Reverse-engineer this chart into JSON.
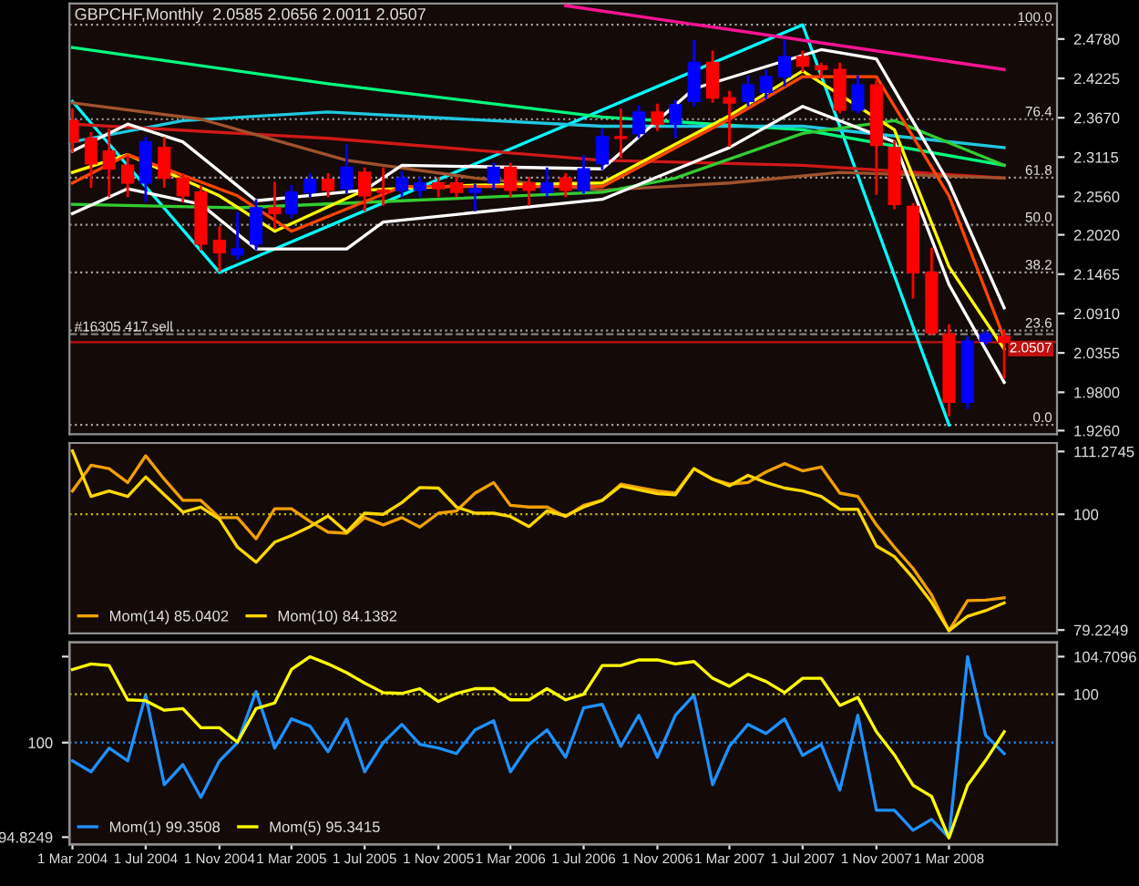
{
  "chart_data": [
    {
      "type": "candlestick",
      "title": "GBPCHF,Monthly  2.0585 2.0656 2.0011 2.0507",
      "x": [
        "2004-03",
        "2004-04",
        "2004-05",
        "2004-06",
        "2004-07",
        "2004-08",
        "2004-09",
        "2004-10",
        "2004-11",
        "2004-12",
        "2005-01",
        "2005-02",
        "2005-03",
        "2005-04",
        "2005-05",
        "2005-06",
        "2005-07",
        "2005-08",
        "2005-09",
        "2005-10",
        "2005-11",
        "2005-12",
        "2006-01",
        "2006-02",
        "2006-03",
        "2006-04",
        "2006-05",
        "2006-06",
        "2006-07",
        "2006-08",
        "2006-09",
        "2006-10",
        "2006-11",
        "2006-12",
        "2007-01",
        "2007-02",
        "2007-03",
        "2007-04",
        "2007-05",
        "2007-06",
        "2007-07",
        "2007-08",
        "2007-09",
        "2007-10",
        "2007-11",
        "2007-12",
        "2008-01",
        "2008-02",
        "2008-03",
        "2008-04",
        "2008-05",
        "2008-06"
      ],
      "ohlc": [
        [
          2.363,
          2.378,
          2.32,
          2.333
        ],
        [
          2.338,
          2.345,
          2.27,
          2.302
        ],
        [
          2.32,
          2.35,
          2.257,
          2.295
        ],
        [
          2.3,
          2.312,
          2.257,
          2.275
        ],
        [
          2.275,
          2.338,
          2.25,
          2.333
        ],
        [
          2.325,
          2.338,
          2.27,
          2.282
        ],
        [
          2.282,
          2.287,
          2.25,
          2.257
        ],
        [
          2.262,
          2.27,
          2.182,
          2.189
        ],
        [
          2.194,
          2.212,
          2.152,
          2.177
        ],
        [
          2.174,
          2.232,
          2.169,
          2.182
        ],
        [
          2.189,
          2.25,
          2.182,
          2.24
        ],
        [
          2.24,
          2.275,
          2.212,
          2.232
        ],
        [
          2.232,
          2.27,
          2.227,
          2.262
        ],
        [
          2.262,
          2.287,
          2.257,
          2.28
        ],
        [
          2.28,
          2.287,
          2.257,
          2.265
        ],
        [
          2.267,
          2.328,
          2.262,
          2.297
        ],
        [
          2.29,
          2.295,
          2.237,
          2.257
        ],
        [
          2.265,
          2.295,
          2.245,
          2.262
        ],
        [
          2.265,
          2.29,
          2.257,
          2.282
        ],
        [
          2.265,
          2.282,
          2.257,
          2.275
        ],
        [
          2.275,
          2.282,
          2.257,
          2.267
        ],
        [
          2.275,
          2.282,
          2.257,
          2.262
        ],
        [
          2.262,
          2.272,
          2.237,
          2.267
        ],
        [
          2.275,
          2.302,
          2.267,
          2.297
        ],
        [
          2.297,
          2.302,
          2.257,
          2.265
        ],
        [
          2.275,
          2.282,
          2.245,
          2.265
        ],
        [
          2.262,
          2.295,
          2.257,
          2.275
        ],
        [
          2.282,
          2.287,
          2.257,
          2.265
        ],
        [
          2.265,
          2.312,
          2.262,
          2.295
        ],
        [
          2.302,
          2.35,
          2.295,
          2.34
        ],
        [
          2.34,
          2.378,
          2.312,
          2.338
        ],
        [
          2.345,
          2.383,
          2.34,
          2.375
        ],
        [
          2.375,
          2.385,
          2.35,
          2.358
        ],
        [
          2.358,
          2.39,
          2.34,
          2.385
        ],
        [
          2.39,
          2.475,
          2.385,
          2.445
        ],
        [
          2.445,
          2.46,
          2.39,
          2.395
        ],
        [
          2.395,
          2.403,
          2.328,
          2.388
        ],
        [
          2.39,
          2.425,
          2.385,
          2.413
        ],
        [
          2.403,
          2.433,
          2.395,
          2.425
        ],
        [
          2.425,
          2.475,
          2.413,
          2.453
        ],
        [
          2.453,
          2.46,
          2.433,
          2.44
        ],
        [
          2.44,
          2.443,
          2.425,
          2.435
        ],
        [
          2.435,
          2.443,
          2.375,
          2.378
        ],
        [
          2.378,
          2.425,
          2.375,
          2.413
        ],
        [
          2.413,
          2.42,
          2.26,
          2.328
        ],
        [
          2.325,
          2.333,
          2.24,
          2.245
        ],
        [
          2.242,
          2.245,
          2.114,
          2.149
        ],
        [
          2.149,
          2.182,
          2.062,
          2.064
        ],
        [
          2.062,
          2.074,
          1.948,
          1.966
        ],
        [
          1.966,
          2.057,
          1.958,
          2.052
        ],
        [
          2.052,
          2.064,
          2.049,
          2.062
        ],
        [
          2.0585,
          2.0656,
          2.0011,
          2.0507
        ]
      ],
      "colors": [
        "#ff0000",
        "#ff0000",
        "#ff0000",
        "#ff0000",
        "#0000ff",
        "#ff0000",
        "#ff0000",
        "#ff0000",
        "#ff0000",
        "#0000ff",
        "#0000ff",
        "#ff0000",
        "#0000ff",
        "#0000ff",
        "#ff0000",
        "#0000ff",
        "#ff0000",
        "#ff0000",
        "#0000ff",
        "#0000ff",
        "#ff0000",
        "#ff0000",
        "#0000ff",
        "#0000ff",
        "#ff0000",
        "#ff0000",
        "#0000ff",
        "#ff0000",
        "#0000ff",
        "#0000ff",
        "#ff0000",
        "#0000ff",
        "#ff0000",
        "#0000ff",
        "#0000ff",
        "#ff0000",
        "#ff0000",
        "#0000ff",
        "#0000ff",
        "#0000ff",
        "#ff0000",
        "#ff0000",
        "#ff0000",
        "#0000ff",
        "#ff0000",
        "#ff0000",
        "#ff0000",
        "#ff0000",
        "#ff0000",
        "#0000ff",
        "#0000ff",
        "#ff0000"
      ],
      "series": [
        {
          "type": "line",
          "color": "#00ffff",
          "x": [
            "2004-03",
            "2004-11",
            "2007-07",
            "2008-03"
          ],
          "values": [
            2.39,
            2.149,
            2.498,
            1.934
          ]
        },
        {
          "type": "line",
          "color": "#ff1493",
          "x": [
            "2006-06",
            "2008-06"
          ],
          "values": [
            2.525,
            2.435
          ]
        },
        {
          "type": "line",
          "color": "#00ff7f",
          "x": [
            "2004-03",
            "2005-05",
            "2006-08",
            "2007-07",
            "2008-06"
          ],
          "values": [
            2.466,
            2.415,
            2.368,
            2.35,
            2.3
          ]
        },
        {
          "type": "line",
          "color": "#20c8e0",
          "x": [
            "2004-03",
            "2004-09",
            "2005-05",
            "2006-08",
            "2007-07",
            "2008-06"
          ],
          "values": [
            2.333,
            2.363,
            2.375,
            2.355,
            2.355,
            2.325
          ]
        },
        {
          "type": "line",
          "color": "#d01818",
          "x": [
            "2004-03",
            "2005-05",
            "2006-08",
            "2007-07",
            "2008-06"
          ],
          "values": [
            2.358,
            2.338,
            2.307,
            2.3,
            2.282
          ]
        },
        {
          "type": "line",
          "color": "#a0522d",
          "x": [
            "2004-03",
            "2004-10",
            "2005-06",
            "2006-01",
            "2006-08",
            "2007-03",
            "2007-09",
            "2008-06"
          ],
          "values": [
            2.388,
            2.365,
            2.307,
            2.282,
            2.265,
            2.275,
            2.29,
            2.282
          ]
        },
        {
          "type": "line",
          "color": "#32cd32",
          "x": [
            "2004-03",
            "2004-12",
            "2005-09",
            "2006-08",
            "2006-12",
            "2007-07",
            "2007-12",
            "2008-06"
          ],
          "values": [
            2.245,
            2.24,
            2.25,
            2.262,
            2.282,
            2.345,
            2.363,
            2.3
          ]
        },
        {
          "type": "line",
          "color": "#ffff00",
          "x": [
            "2004-03",
            "2004-06",
            "2004-11",
            "2005-02",
            "2005-07",
            "2006-01",
            "2006-08",
            "2007-03",
            "2007-07",
            "2007-12",
            "2008-03",
            "2008-06"
          ],
          "values": [
            2.29,
            2.315,
            2.257,
            2.207,
            2.265,
            2.272,
            2.275,
            2.37,
            2.433,
            2.35,
            2.157,
            2.041
          ]
        },
        {
          "type": "line",
          "color": "#ff4500",
          "x": [
            "2004-03",
            "2004-06",
            "2004-12",
            "2005-03",
            "2005-09",
            "2006-08",
            "2007-03",
            "2007-07",
            "2007-11",
            "2008-03",
            "2008-06"
          ],
          "values": [
            2.275,
            2.315,
            2.257,
            2.207,
            2.27,
            2.27,
            2.365,
            2.425,
            2.425,
            2.257,
            2.056
          ]
        },
        {
          "type": "line",
          "color": "#ffffff",
          "x": [
            "2004-03",
            "2004-06",
            "2004-09",
            "2005-01",
            "2005-07",
            "2005-09",
            "2006-08",
            "2007-01",
            "2007-08",
            "2007-11",
            "2008-03",
            "2008-06"
          ],
          "values": [
            2.32,
            2.358,
            2.333,
            2.25,
            2.265,
            2.3,
            2.295,
            2.408,
            2.463,
            2.45,
            2.275,
            2.099
          ]
        },
        {
          "type": "line",
          "color": "#ffffff",
          "x": [
            "2004-03",
            "2004-06",
            "2004-10",
            "2005-01",
            "2005-06",
            "2005-08",
            "2006-08",
            "2007-03",
            "2007-07",
            "2007-12",
            "2008-03",
            "2008-06"
          ],
          "values": [
            2.232,
            2.267,
            2.245,
            2.182,
            2.182,
            2.22,
            2.252,
            2.325,
            2.383,
            2.333,
            2.132,
            1.994
          ]
        }
      ],
      "ylim": [
        1.921,
        2.528
      ],
      "yticks": [
        {
          "value": 2.478,
          "label": "2.4780"
        },
        {
          "value": 2.4225,
          "label": "2.4225"
        },
        {
          "value": 2.367,
          "label": "2.3670"
        },
        {
          "value": 2.3115,
          "label": "2.3115"
        },
        {
          "value": 2.256,
          "label": "2.2560"
        },
        {
          "value": 2.202,
          "label": "2.2020"
        },
        {
          "value": 2.1465,
          "label": "2.1465"
        },
        {
          "value": 2.091,
          "label": "2.0910"
        },
        {
          "value": 2.0355,
          "label": "2.0355"
        },
        {
          "value": 1.98,
          "label": "1.9800"
        },
        {
          "value": 1.926,
          "label": "1.9260"
        }
      ],
      "xlim": [
        "2004-02-25",
        "2008-08-28"
      ],
      "annotations": [
        {
          "text": "100.0",
          "x": "2008-08-20",
          "y": 2.498
        },
        {
          "text": "76.4",
          "x": "2008-08-20",
          "y": 2.365
        },
        {
          "text": "61.8",
          "x": "2008-08-20",
          "y": 2.2825
        },
        {
          "text": "50.0",
          "x": "2008-08-20",
          "y": 2.216
        },
        {
          "text": "38.2",
          "x": "2008-08-20",
          "y": 2.149
        },
        {
          "text": "23.6",
          "x": "2008-08-20",
          "y": 2.067
        },
        {
          "text": "0.0",
          "x": "2008-08-20",
          "y": 1.934
        }
      ],
      "ref_lines": [
        {
          "axis": "y",
          "value": 2.498,
          "color": "#a0a0a0",
          "line_style": "dotted"
        },
        {
          "axis": "y",
          "value": 2.365,
          "color": "#a0a0a0",
          "line_style": "dotted"
        },
        {
          "axis": "y",
          "value": 2.2825,
          "color": "#a0a0a0",
          "line_style": "dotted"
        },
        {
          "axis": "y",
          "value": 2.216,
          "color": "#a0a0a0",
          "line_style": "dotted"
        },
        {
          "axis": "y",
          "value": 2.149,
          "color": "#a0a0a0",
          "line_style": "dotted"
        },
        {
          "axis": "y",
          "value": 2.067,
          "color": "#a0a0a0",
          "line_style": "dotted"
        },
        {
          "axis": "y",
          "value": 1.934,
          "color": "#a0a0a0",
          "line_style": "dotted"
        },
        {
          "axis": "y",
          "value": 2.062,
          "label": "#16305 417 sell",
          "color": "#808080",
          "line_style": "dashed"
        },
        {
          "axis": "y",
          "value": 2.0507,
          "label": "2.0507",
          "color": "#c01010",
          "line_style": "solid"
        }
      ]
    },
    {
      "type": "line",
      "x": [
        "2004-03",
        "2004-04",
        "2004-05",
        "2004-06",
        "2004-07",
        "2004-08",
        "2004-09",
        "2004-10",
        "2004-11",
        "2004-12",
        "2005-01",
        "2005-02",
        "2005-03",
        "2005-04",
        "2005-05",
        "2005-06",
        "2005-07",
        "2005-08",
        "2005-09",
        "2005-10",
        "2005-11",
        "2005-12",
        "2006-01",
        "2006-02",
        "2006-03",
        "2006-04",
        "2006-05",
        "2006-06",
        "2006-07",
        "2006-08",
        "2006-09",
        "2006-10",
        "2006-11",
        "2006-12",
        "2007-01",
        "2007-02",
        "2007-03",
        "2007-04",
        "2007-05",
        "2007-06",
        "2007-07",
        "2007-08",
        "2007-09",
        "2007-10",
        "2007-11",
        "2007-12",
        "2008-01",
        "2008-02",
        "2008-03",
        "2008-04",
        "2008-05",
        "2008-06"
      ],
      "series": [
        {
          "name": "Mom(14) 85.0402",
          "color": "#f0a000",
          "values": [
            104.2,
            108.8,
            108.2,
            105.7,
            110.5,
            106.3,
            102.5,
            102.5,
            99.4,
            99.4,
            95.6,
            101.0,
            101.0,
            98.7,
            96.8,
            96.6,
            99.4,
            98.1,
            99.4,
            97.7,
            100.2,
            100.6,
            103.8,
            105.7,
            101.6,
            101.3,
            101.3,
            99.6,
            101.6,
            102.5,
            105.4,
            104.8,
            104.2,
            103.8,
            108.2,
            106.3,
            105.4,
            105.7,
            107.6,
            109.1,
            107.8,
            108.5,
            103.8,
            103.2,
            98.1,
            94.1,
            90.3,
            85.5,
            79.1,
            84.5,
            84.6,
            85.0
          ]
        },
        {
          "name": "Mom(10) 84.1382",
          "color": "#ffd700",
          "values": [
            111.4,
            103.2,
            104.2,
            103.2,
            106.7,
            103.5,
            100.4,
            101.3,
            99.1,
            94.1,
            91.4,
            95.0,
            96.2,
            97.8,
            99.7,
            96.8,
            100.2,
            100.0,
            102.1,
            104.8,
            104.7,
            101.3,
            100.2,
            100.2,
            99.6,
            97.8,
            100.6,
            99.7,
            101.3,
            102.5,
            105.1,
            104.4,
            103.7,
            103.5,
            108.2,
            106.3,
            105.1,
            107.0,
            105.7,
            104.7,
            104.2,
            103.2,
            100.9,
            100.9,
            94.3,
            92.4,
            88.6,
            84.2,
            79.1,
            81.7,
            82.7,
            84.1
          ]
        }
      ],
      "ylim": [
        78.6,
        112.8
      ],
      "yticks": [
        111.2745,
        100,
        79.2249
      ],
      "xlim": [
        "2004-02-25",
        "2008-08-28"
      ],
      "legend": "bottom left",
      "ref_lines": [
        {
          "axis": "y",
          "value": 100,
          "color": "#c8b400",
          "line_style": "dotted"
        }
      ]
    },
    {
      "type": "line",
      "x": [
        "2004-03",
        "2004-04",
        "2004-05",
        "2004-06",
        "2004-07",
        "2004-08",
        "2004-09",
        "2004-10",
        "2004-11",
        "2004-12",
        "2005-01",
        "2005-02",
        "2005-03",
        "2005-04",
        "2005-05",
        "2005-06",
        "2005-07",
        "2005-08",
        "2005-09",
        "2005-10",
        "2005-11",
        "2005-12",
        "2006-01",
        "2006-02",
        "2006-03",
        "2006-04",
        "2006-05",
        "2006-06",
        "2006-07",
        "2006-08",
        "2006-09",
        "2006-10",
        "2006-11",
        "2006-12",
        "2007-01",
        "2007-02",
        "2007-03",
        "2007-04",
        "2007-05",
        "2007-06",
        "2007-07",
        "2007-08",
        "2007-09",
        "2007-10",
        "2007-11",
        "2007-12",
        "2008-01",
        "2008-02",
        "2008-03",
        "2008-04",
        "2008-05",
        "2008-06"
      ],
      "series": [
        {
          "name": "Mom(1) 99.3508",
          "color": "#1e90ff",
          "values": [
            99.0,
            98.4,
            99.7,
            99.0,
            102.6,
            97.7,
            98.8,
            97.0,
            99.0,
            100.0,
            102.8,
            99.7,
            101.3,
            100.9,
            99.5,
            101.3,
            98.4,
            100.0,
            101.0,
            99.9,
            99.7,
            99.4,
            100.7,
            101.2,
            98.4,
            99.9,
            100.7,
            99.2,
            101.9,
            102.1,
            99.8,
            101.5,
            99.2,
            101.5,
            102.6,
            97.7,
            99.8,
            101.0,
            100.5,
            101.3,
            99.3,
            99.9,
            97.4,
            101.5,
            96.3,
            96.3,
            95.2,
            95.8,
            94.8,
            104.7,
            100.4,
            99.4
          ]
        },
        {
          "name": "Mom(5) 95.3415",
          "color": "#ffff00",
          "axis": "y2",
          "values": [
            103.1,
            103.8,
            103.6,
            99.3,
            99.2,
            98.0,
            98.2,
            95.8,
            95.8,
            94.0,
            98.2,
            98.9,
            103.1,
            104.7,
            103.8,
            102.7,
            101.4,
            100.2,
            100.1,
            100.7,
            99.1,
            100.1,
            100.7,
            100.7,
            99.3,
            99.3,
            100.7,
            99.3,
            100.0,
            103.6,
            103.6,
            104.3,
            104.3,
            103.8,
            104.1,
            102.0,
            101.0,
            102.5,
            101.6,
            100.2,
            102.0,
            102.0,
            98.6,
            99.6,
            95.3,
            92.4,
            88.6,
            87.2,
            82.0,
            88.6,
            91.7,
            95.3
          ]
        }
      ],
      "ylim": [
        94.43,
        105.49
      ],
      "yticks": [
        {
          "value": 104.7096,
          "label": null
        },
        100,
        94.8249
      ],
      "y2lim": [
        81.2,
        106.5
      ],
      "y2ticks": [
        104.7096,
        100
      ],
      "xlim": [
        "2004-02-25",
        "2008-08-28"
      ],
      "xticks": [
        {
          "value": "2004-03-01",
          "label": "1 Mar 2004"
        },
        {
          "value": "2004-07-01",
          "label": "1 Jul 2004"
        },
        {
          "value": "2004-11-01",
          "label": "1 Nov 2004"
        },
        {
          "value": "2005-03-01",
          "label": "1 Mar 2005"
        },
        {
          "value": "2005-07-01",
          "label": "1 Jul 2005"
        },
        {
          "value": "2005-11-01",
          "label": "1 Nov 2005"
        },
        {
          "value": "2006-03-01",
          "label": "1 Mar 2006"
        },
        {
          "value": "2006-07-01",
          "label": "1 Jul 2006"
        },
        {
          "value": "2006-11-01",
          "label": "1 Nov 2006"
        },
        {
          "value": "2007-03-01",
          "label": "1 Mar 2007"
        },
        {
          "value": "2007-07-01",
          "label": "1 Jul 2007"
        },
        {
          "value": "2007-11-01",
          "label": "1 Nov 2007"
        },
        {
          "value": "2008-03-01",
          "label": "1 Mar 2008"
        }
      ],
      "legend": "bottom left",
      "ref_lines": [
        {
          "axis": "y",
          "value": 100,
          "color": "#1e90ff",
          "line_style": "dotted"
        },
        {
          "axis": "y2",
          "value": 100,
          "color": "#c8c800",
          "line_style": "dotted"
        }
      ]
    }
  ]
}
